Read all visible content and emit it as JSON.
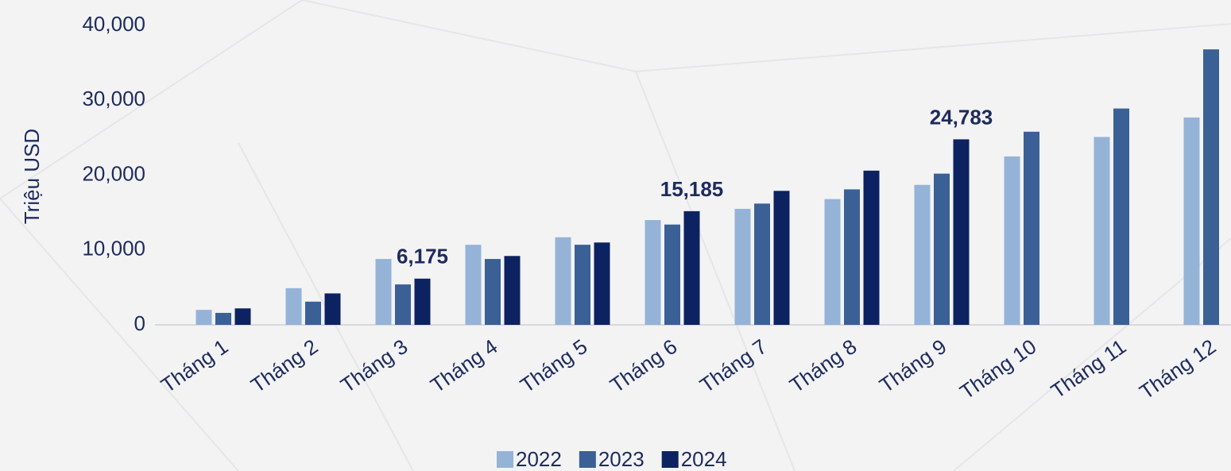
{
  "chart_data": {
    "type": "bar",
    "y_label": "Triệu USD",
    "categories": [
      "Tháng 1",
      "Tháng 2",
      "Tháng 3",
      "Tháng 4",
      "Tháng 5",
      "Tháng 6",
      "Tháng 7",
      "Tháng 8",
      "Tháng 9",
      "Tháng 10",
      "Tháng 11",
      "Tháng 12"
    ],
    "series": [
      {
        "name": "2022",
        "color": "#95b3d7",
        "values": [
          2000,
          4900,
          8800,
          10700,
          11700,
          14000,
          15500,
          16800,
          18700,
          22500,
          25100,
          27700
        ]
      },
      {
        "name": "2023",
        "color": "#3a6096",
        "values": [
          1600,
          3100,
          5400,
          8800,
          10700,
          13400,
          16200,
          18100,
          20200,
          25800,
          28900,
          36800
        ]
      },
      {
        "name": "2024",
        "color": "#0c2261",
        "values": [
          2200,
          4200,
          6175,
          9200,
          11000,
          15185,
          17900,
          20600,
          24783,
          null,
          null,
          null
        ],
        "value_labels": [
          null,
          null,
          "6,175",
          null,
          null,
          "15,185",
          null,
          null,
          "24,783",
          null,
          null,
          null
        ]
      }
    ],
    "ylim": [
      0,
      40000
    ],
    "yticks": [
      0,
      {
        "value": 10000,
        "label": "10,000"
      },
      {
        "value": 20000,
        "label": "20,000"
      },
      {
        "value": 30000,
        "label": "30,000"
      },
      {
        "value": 40000,
        "label": "40,000"
      }
    ],
    "grid": false,
    "legend": "bottom"
  }
}
